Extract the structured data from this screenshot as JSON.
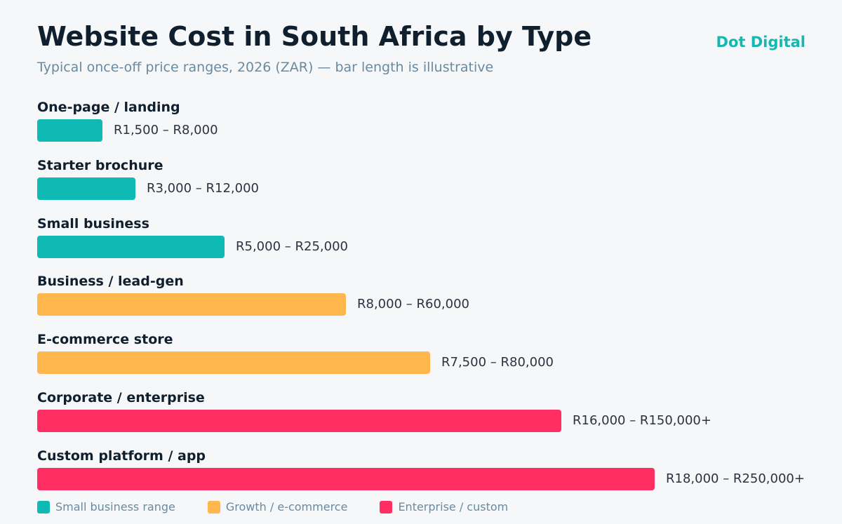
{
  "header": {
    "title": "Website Cost in South Africa by Type",
    "subtitle": "Typical once-off price ranges, 2026 (ZAR) — bar length is illustrative",
    "brand": "Dot Digital"
  },
  "colors": {
    "small": "#0fbab4",
    "growth": "#ffb74d",
    "enterprise": "#ff2e63"
  },
  "chart_data": {
    "type": "bar",
    "orientation": "horizontal",
    "title": "Website Cost in South Africa by Type",
    "subtitle": "Typical once-off price ranges, 2026 (ZAR) — bar length is illustrative",
    "categories": [
      "One-page / landing",
      "Starter brochure",
      "Small business",
      "Business / lead-gen",
      "E-commerce store",
      "Corporate / enterprise",
      "Custom platform / app"
    ],
    "range_labels": [
      "R1,500 – R8,000",
      "R3,000 – R12,000",
      "R5,000 – R25,000",
      "R8,000 – R60,000",
      "R7,500 – R80,000",
      "R16,000 – R150,000+",
      "R18,000 – R250,000+"
    ],
    "values": [
      8000,
      12000,
      25000,
      60000,
      80000,
      150000,
      250000
    ],
    "groups": [
      "small",
      "small",
      "small",
      "growth",
      "growth",
      "enterprise",
      "enterprise"
    ],
    "legend": [
      {
        "key": "small",
        "label": "Small business range"
      },
      {
        "key": "growth",
        "label": "Growth / e-commerce"
      },
      {
        "key": "enterprise",
        "label": "Enterprise / custom"
      }
    ],
    "legend_position": "bottom-left",
    "grid": false
  }
}
